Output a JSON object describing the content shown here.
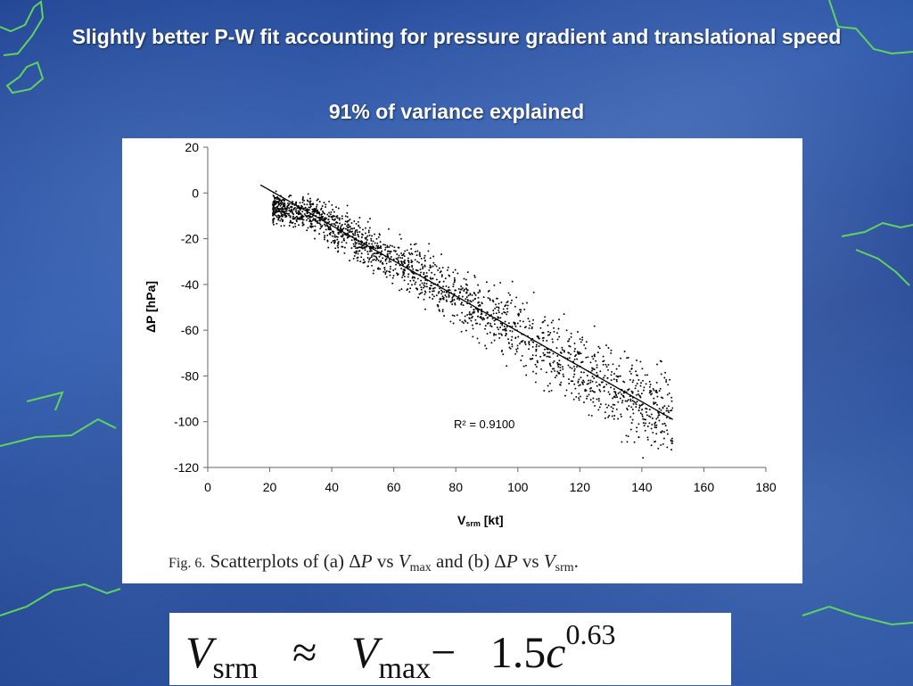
{
  "slide": {
    "title": "Slightly better P-W fit accounting for pressure gradient and translational speed",
    "subtitle": "91% of variance explained"
  },
  "colors": {
    "background": "#2a55a8",
    "coastline": "#5fd35f",
    "text": "#ffffff"
  },
  "chart_data": {
    "type": "scatter",
    "xlabel": "Vsrm [kt]",
    "xlabel_main": "V",
    "xlabel_sub": "srm",
    "xlabel_unit": "[kt]",
    "ylabel": "ΔP [hPa]",
    "xlim": [
      0,
      180
    ],
    "ylim": [
      -120,
      20
    ],
    "x_ticks": [
      "0",
      "20",
      "40",
      "60",
      "80",
      "100",
      "120",
      "140",
      "160",
      "180"
    ],
    "y_ticks": [
      "20",
      "0",
      "-20",
      "-40",
      "-60",
      "-80",
      "-100",
      "-120"
    ],
    "grid": false,
    "trendline": {
      "x": [
        17,
        150
      ],
      "y": [
        3.5,
        -99
      ]
    },
    "r_squared_label": "R² = 0.9100",
    "point_cloud": {
      "x_range": [
        17,
        150
      ],
      "description_count": 2000
    }
  },
  "caption": {
    "fig_label": "Fig. 6.",
    "text_a": "Scatterplots of (a) Δ",
    "p_symbol": "P",
    "vs_1": "vs",
    "v_symbol": "V",
    "max_sub": "max",
    "and_b": "and (b) Δ",
    "srm_sub": "srm",
    "period": "."
  },
  "formula": {
    "v": "V",
    "srm": "srm",
    "approx": "≈",
    "max": "max",
    "minus": "−",
    "coef": "1.5",
    "c": "c",
    "exponent": "0.63"
  }
}
